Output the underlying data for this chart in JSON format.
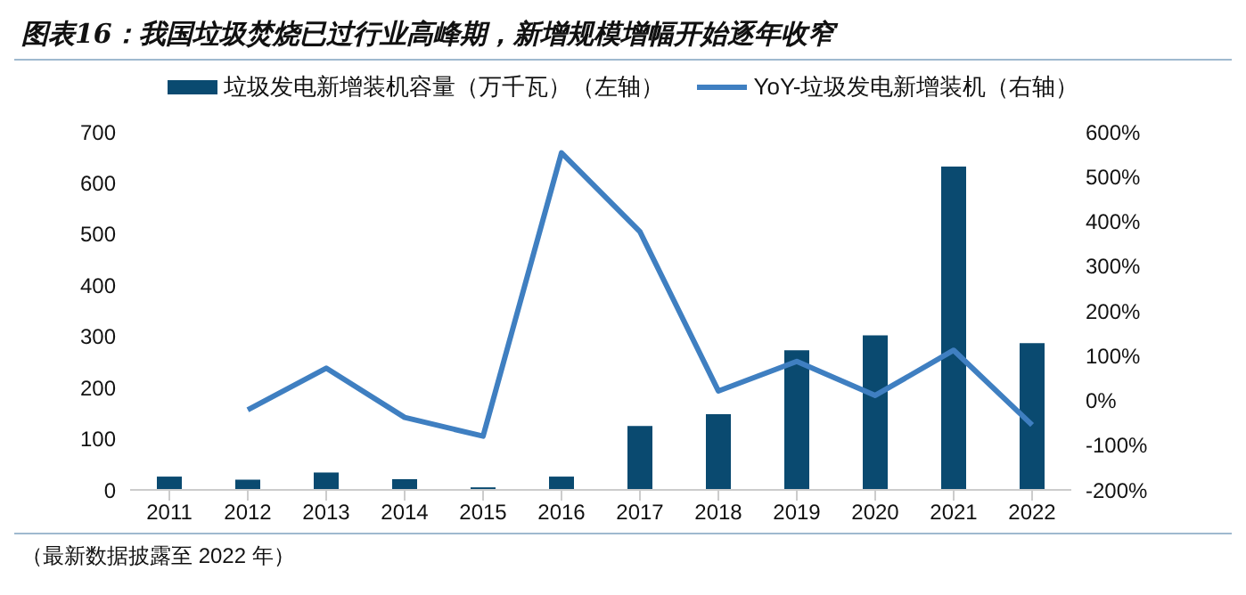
{
  "chart_data": {
    "type": "bar",
    "title": "图表16：我国垃圾焚烧已过行业高峰期，新增规模增幅开始逐年收窄",
    "categories": [
      "2011",
      "2012",
      "2013",
      "2014",
      "2015",
      "2016",
      "2017",
      "2018",
      "2019",
      "2020",
      "2021",
      "2022"
    ],
    "series": [
      {
        "name": "垃圾发电新增装机容量（万千瓦）（左轴）",
        "color": "#0a4a70",
        "values": [
          26,
          20,
          34,
          21,
          5,
          26,
          125,
          148,
          273,
          302,
          632,
          287
        ]
      },
      {
        "name": "YoY-垃圾发电新增装机（右轴）",
        "type": "line",
        "axis": "y2",
        "color": "#3f7fc1",
        "values": [
          null,
          -21,
          72,
          -38,
          -80,
          553,
          377,
          21,
          87,
          11,
          112,
          -55
        ]
      }
    ],
    "ylim": [
      0,
      700
    ],
    "yticks": [
      0,
      100,
      200,
      300,
      400,
      500,
      600,
      700
    ],
    "y2lim": [
      -200,
      600
    ],
    "y2ticks": [
      {
        "value": -200,
        "label": "-200%"
      },
      {
        "value": -100,
        "label": "-100%"
      },
      {
        "value": 0,
        "label": "0%"
      },
      {
        "value": 100,
        "label": "100%"
      },
      {
        "value": 200,
        "label": "200%"
      },
      {
        "value": 300,
        "label": "300%"
      },
      {
        "value": 400,
        "label": "400%"
      },
      {
        "value": 500,
        "label": "500%"
      },
      {
        "value": 600,
        "label": "600%"
      }
    ],
    "grid": false,
    "legend": "top",
    "marker": "none",
    "annotations": [
      "（最新数据披露至 2022 年）"
    ]
  }
}
